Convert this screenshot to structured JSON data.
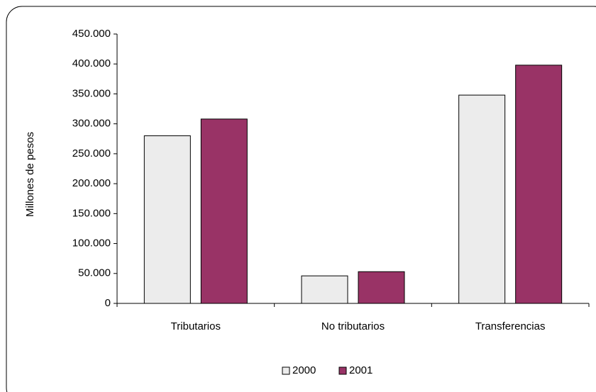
{
  "chart_data": {
    "type": "bar",
    "y_label": "Millones de pesos",
    "categories": [
      "Tributarios",
      "No tributarios",
      "Transferencias"
    ],
    "series": [
      {
        "name": "2000",
        "color": "#ececec",
        "values": [
          280000,
          46000,
          348000
        ]
      },
      {
        "name": "2001",
        "color": "#993366",
        "values": [
          308000,
          53000,
          398000
        ]
      }
    ],
    "ylim": [
      0,
      450000
    ],
    "yticks": [
      0,
      {
        "value": 50000,
        "label": "50.000"
      },
      {
        "value": 100000,
        "label": "100.000"
      },
      {
        "value": 150000,
        "label": "150.000"
      },
      {
        "value": 200000,
        "label": "200.000"
      },
      {
        "value": 250000,
        "label": "250.000"
      },
      {
        "value": 300000,
        "label": "300.000"
      },
      {
        "value": 350000,
        "label": "350.000"
      },
      {
        "value": 400000,
        "label": "400.000"
      },
      {
        "value": 450000,
        "label": "450.000"
      }
    ],
    "grid": false,
    "legend": "bottom"
  }
}
